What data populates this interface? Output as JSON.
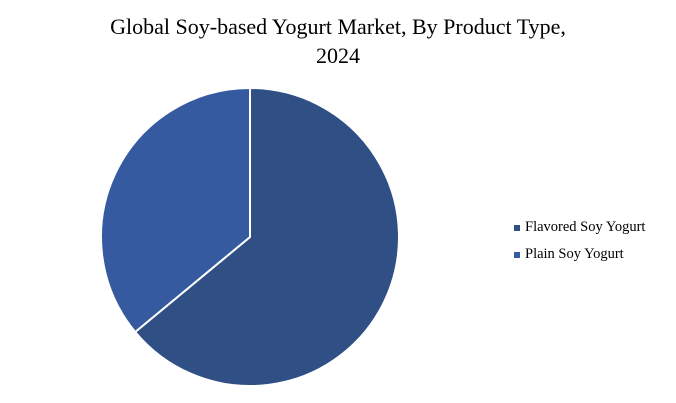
{
  "chart_data": {
    "type": "pie",
    "title": "Global Soy-based Yogurt Market, By Product Type,",
    "subtitle": "2024",
    "categories": [
      "Flavored Soy Yogurt",
      "Plain Soy Yogurt"
    ],
    "values": [
      64,
      36
    ],
    "colors": [
      "#2f4f85",
      "#365a9f"
    ],
    "legend_position": "right"
  }
}
